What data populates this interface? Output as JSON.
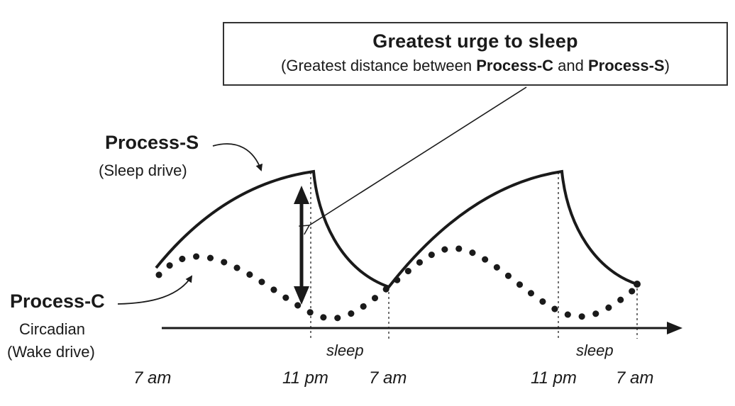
{
  "callout": {
    "title": "Greatest urge to sleep",
    "subtitle_pre": "(Greatest distance between ",
    "subtitle_c": "Process-C",
    "subtitle_and": " and ",
    "subtitle_s": "Process-S",
    "subtitle_post": ")"
  },
  "process_s": {
    "title": "Process-S",
    "subtitle": "(Sleep drive)"
  },
  "process_c": {
    "title": "Process-C",
    "line1": "Circadian",
    "line2": "(Wake drive)"
  },
  "sleep_labels": [
    "sleep",
    "sleep"
  ],
  "time_labels": [
    "7 am",
    "11 pm",
    "7 am",
    "11 pm",
    "7 am"
  ]
}
